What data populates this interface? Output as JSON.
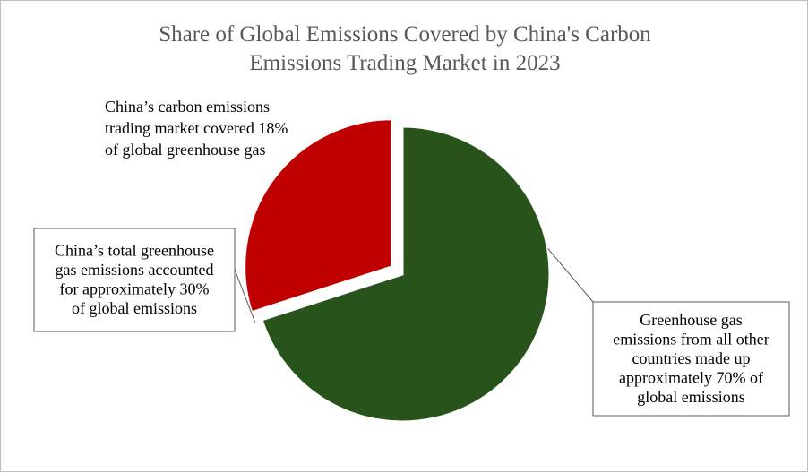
{
  "chart_data": {
    "type": "pie",
    "title": [
      "Share of Global Emissions Covered by China's Carbon",
      "Emissions Trading Market in 2023"
    ],
    "slices": [
      {
        "key": "other",
        "value": 70,
        "color": "#28541b",
        "exploded": false,
        "label_lines": [
          "Greenhouse gas",
          "emissions from all other",
          "countries made up",
          "approximately  70% of",
          "global emissions"
        ],
        "label_boxed": true
      },
      {
        "key": "china",
        "value": 30,
        "color": "#c00000",
        "exploded": true,
        "label_lines": [
          "China’s total greenhouse",
          "gas emissions accounted",
          "for approximately  30%",
          "of global emissions"
        ],
        "label_boxed": true
      }
    ],
    "annotation": {
      "label_lines": [
        "China’s carbon emissions",
        "trading market covered 18%",
        "of global greenhouse gas"
      ],
      "value": 18
    },
    "title_color": "#595959",
    "label_color": "#000000",
    "legend": "none"
  }
}
